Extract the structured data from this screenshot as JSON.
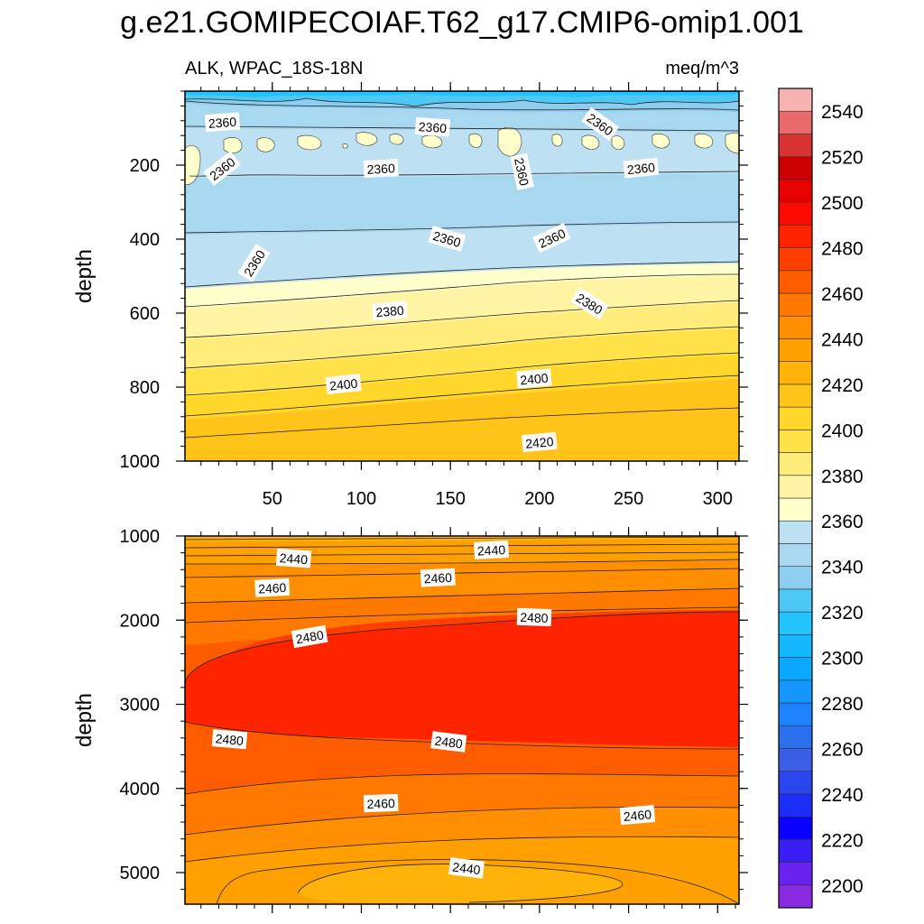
{
  "title": "g.e21.GOMIPECOIAF.T62_g17.CMIP6-omip1.001",
  "chart_data": {
    "type": "contour",
    "variable": "ALK",
    "region": "WPAC_18S-18N",
    "left_label": "ALK, WPAC_18S-18N",
    "units": "meq/m^3",
    "x_range": [
      1,
      312
    ],
    "x_ticks": [
      50,
      100,
      150,
      200,
      250,
      300
    ],
    "colorbar": {
      "levels": [
        2200,
        2210,
        2220,
        2230,
        2240,
        2250,
        2260,
        2270,
        2280,
        2290,
        2300,
        2310,
        2320,
        2330,
        2340,
        2350,
        2360,
        2370,
        2380,
        2390,
        2400,
        2410,
        2420,
        2430,
        2440,
        2450,
        2460,
        2470,
        2480,
        2490,
        2500,
        2510,
        2520,
        2530,
        2540,
        2550
      ],
      "tick_labels": [
        "2200",
        "2220",
        "2240",
        "2260",
        "2280",
        "2300",
        "2320",
        "2340",
        "2360",
        "2380",
        "2400",
        "2420",
        "2440",
        "2460",
        "2480",
        "2500",
        "2520",
        "2540"
      ],
      "colors": [
        "#8a2be2",
        "#6a22f0",
        "#3b1ef5",
        "#0a00ff",
        "#1c2df5",
        "#2a45ee",
        "#3a5ee6",
        "#2a6fee",
        "#1e82ff",
        "#1496ff",
        "#0aa8ff",
        "#14b8ff",
        "#23c3ff",
        "#4ec9f5",
        "#8dcdee",
        "#a8d7f0",
        "#bde1f2",
        "#ffffcc",
        "#fff3a4",
        "#ffec7a",
        "#ffe24a",
        "#ffd62a",
        "#ffc41a",
        "#ffb30a",
        "#ffa000",
        "#ff8e00",
        "#ff7800",
        "#ff5c00",
        "#ff3f00",
        "#ff2400",
        "#ff0a00",
        "#e60000",
        "#cc0000",
        "#d93232",
        "#e86a6a",
        "#f7b2b2"
      ]
    },
    "panels": [
      {
        "name": "upper",
        "ylabel": "depth",
        "y_range": [
          0,
          1000
        ],
        "y_ticks": [
          200,
          400,
          600,
          800,
          1000
        ],
        "contour_labels": [
          {
            "text": "2360",
            "x": 22,
            "y": 85,
            "angle": -4
          },
          {
            "text": "2360",
            "x": 140,
            "y": 98,
            "angle": 4
          },
          {
            "text": "2360",
            "x": 234,
            "y": 90,
            "angle": 35
          },
          {
            "text": "2360",
            "x": 22,
            "y": 210,
            "angle": -38
          },
          {
            "text": "2360",
            "x": 111,
            "y": 210,
            "angle": -3
          },
          {
            "text": "2360",
            "x": 190,
            "y": 218,
            "angle": 78
          },
          {
            "text": "2360",
            "x": 257,
            "y": 209,
            "angle": -6
          },
          {
            "text": "2360",
            "x": 148,
            "y": 400,
            "angle": 16
          },
          {
            "text": "2360",
            "x": 207,
            "y": 398,
            "angle": -25
          },
          {
            "text": "2360",
            "x": 40,
            "y": 465,
            "angle": -58
          },
          {
            "text": "2380",
            "x": 116,
            "y": 595,
            "angle": -5
          },
          {
            "text": "2380",
            "x": 228,
            "y": 575,
            "angle": 32
          },
          {
            "text": "2400",
            "x": 90,
            "y": 793,
            "angle": -6
          },
          {
            "text": "2400",
            "x": 197,
            "y": 778,
            "angle": -5
          },
          {
            "text": "2420",
            "x": 200,
            "y": 950,
            "angle": -5
          }
        ]
      },
      {
        "name": "lower",
        "ylabel": "depth",
        "y_range": [
          1000,
          5375
        ],
        "y_ticks": [
          1000,
          2000,
          3000,
          4000,
          5000
        ],
        "contour_labels": [
          {
            "text": "2440",
            "x": 62,
            "y": 1270,
            "angle": 4
          },
          {
            "text": "2440",
            "x": 173,
            "y": 1170,
            "angle": -3
          },
          {
            "text": "2460",
            "x": 50,
            "y": 1620,
            "angle": -3
          },
          {
            "text": "2460",
            "x": 143,
            "y": 1500,
            "angle": -3
          },
          {
            "text": "2480",
            "x": 71,
            "y": 2200,
            "angle": -10
          },
          {
            "text": "2480",
            "x": 197,
            "y": 1970,
            "angle": 2
          },
          {
            "text": "2480",
            "x": 26,
            "y": 3420,
            "angle": 5
          },
          {
            "text": "2480",
            "x": 149,
            "y": 3450,
            "angle": 7
          },
          {
            "text": "2460",
            "x": 111,
            "y": 4180,
            "angle": -2
          },
          {
            "text": "2460",
            "x": 255,
            "y": 4320,
            "angle": -5
          },
          {
            "text": "2440",
            "x": 159,
            "y": 4950,
            "angle": 7
          }
        ]
      }
    ]
  }
}
